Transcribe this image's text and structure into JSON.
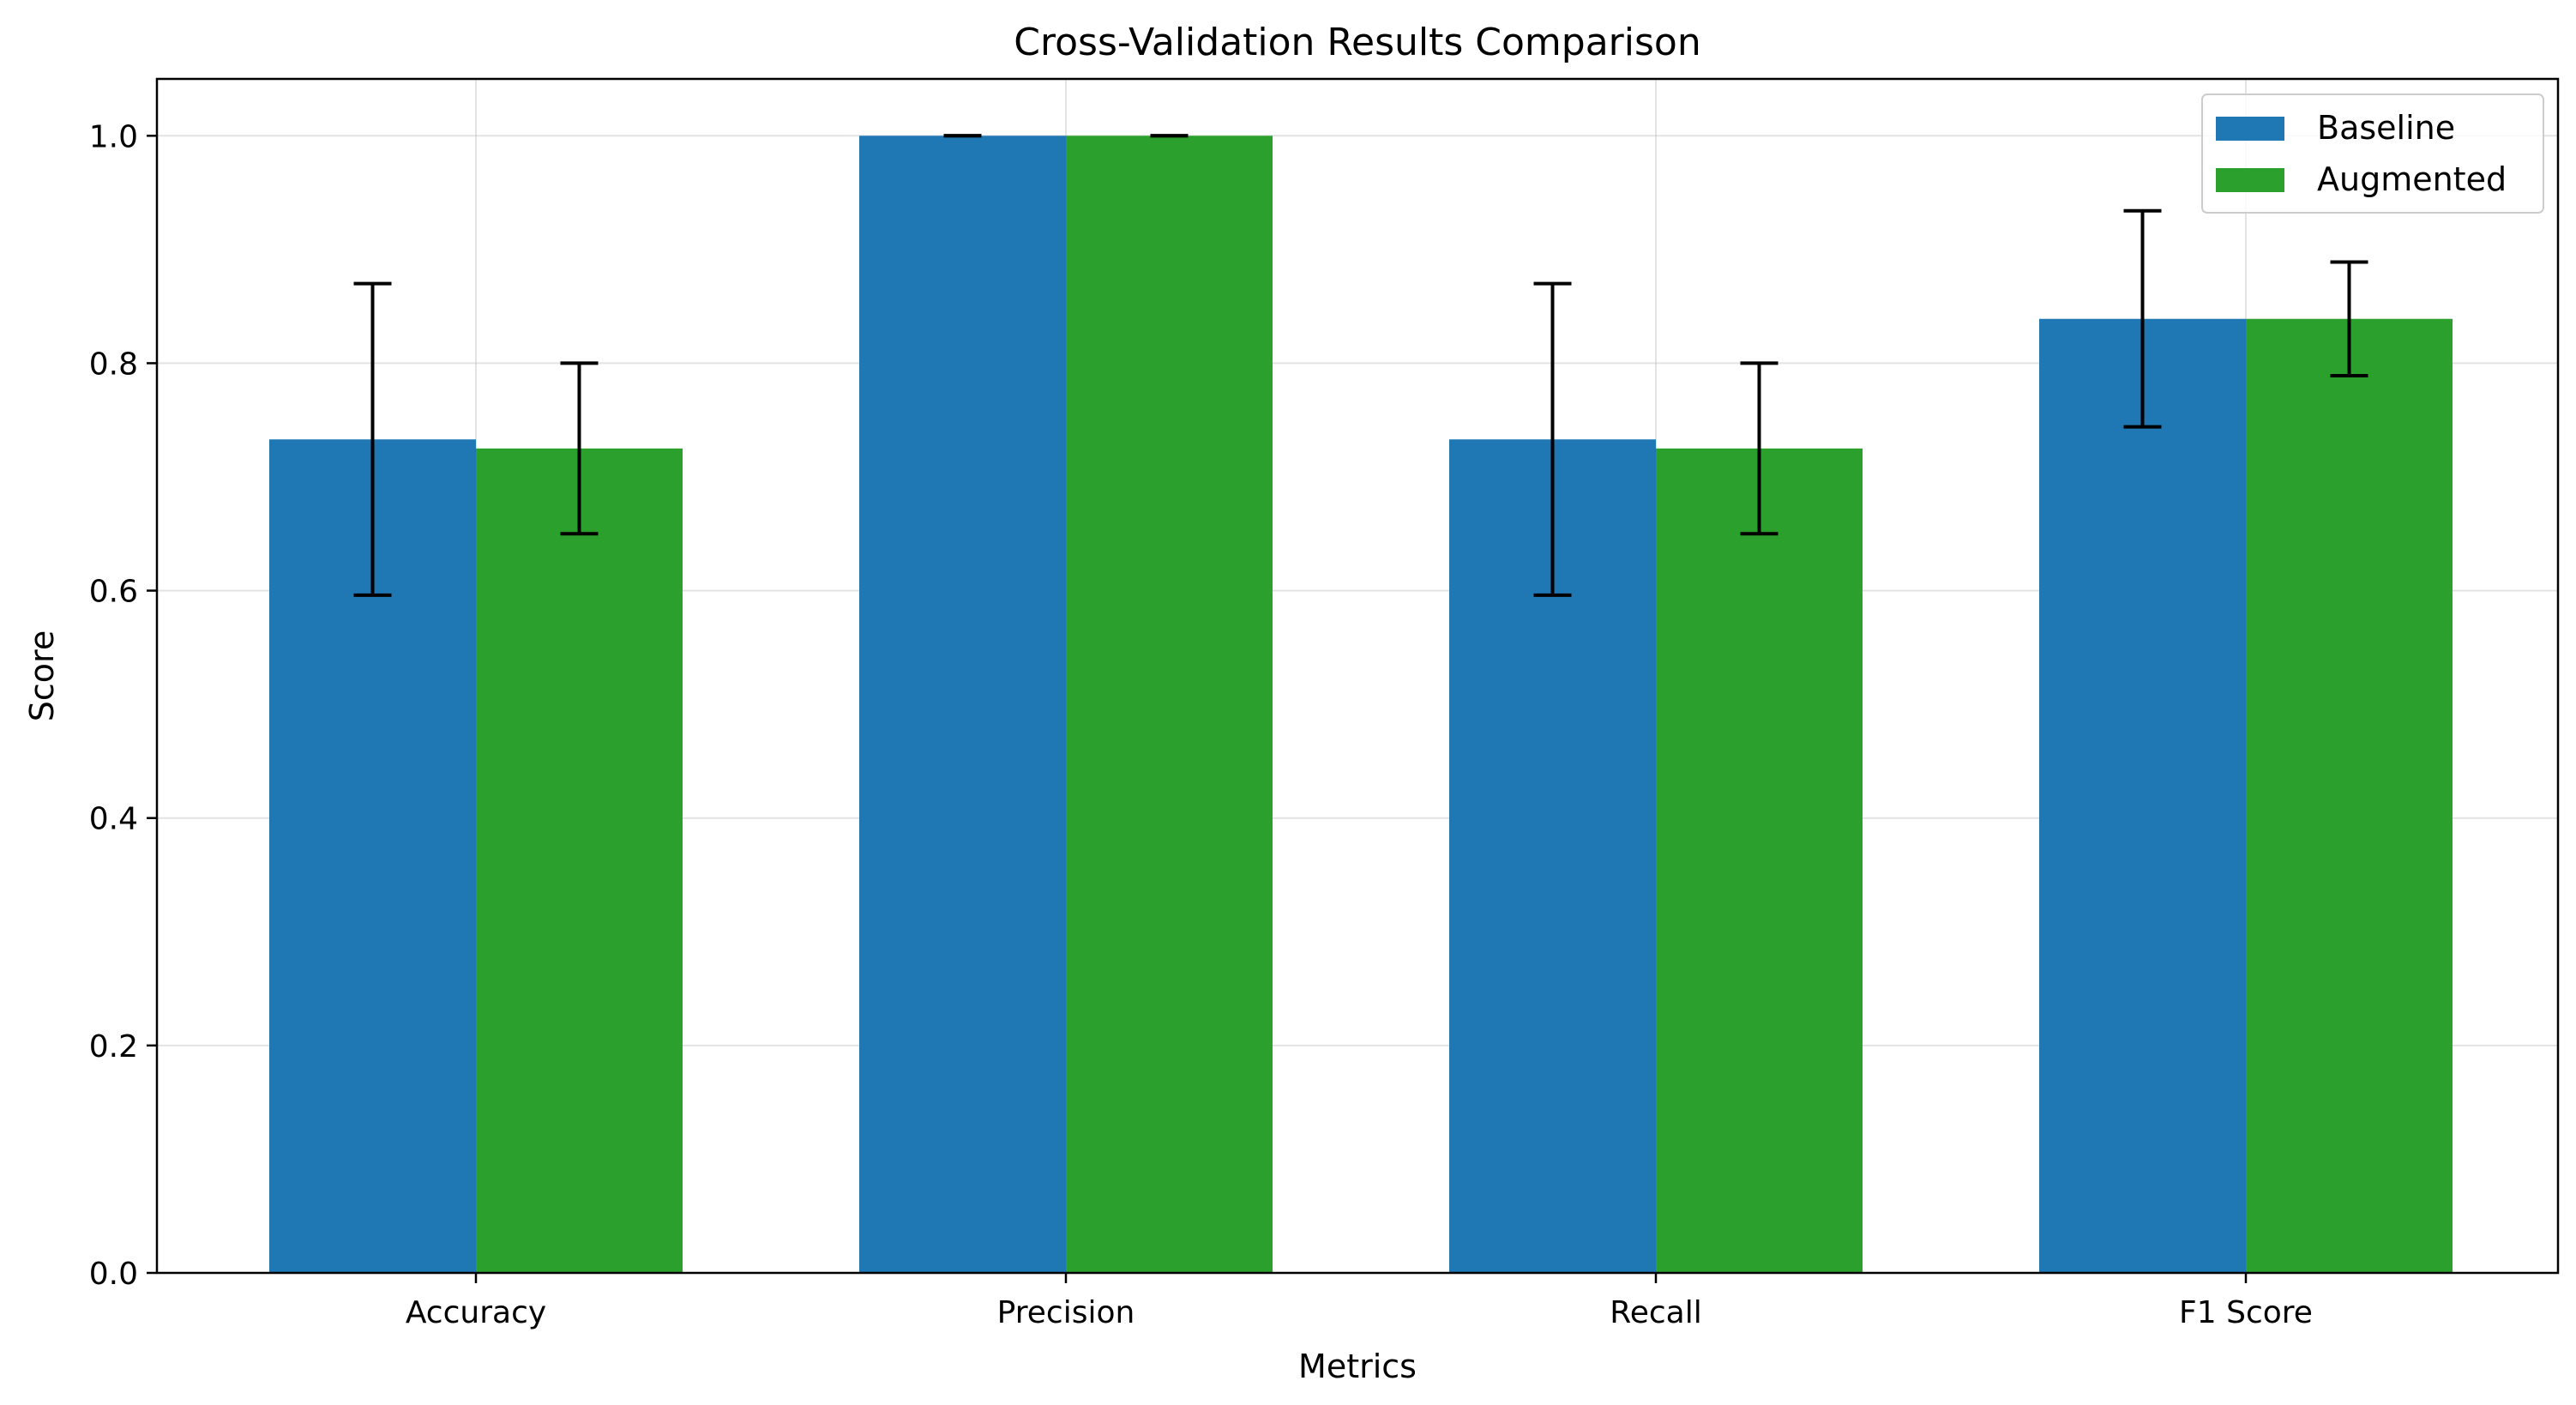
{
  "chart_data": {
    "type": "bar",
    "title": "Cross-Validation Results Comparison",
    "xlabel": "Metrics",
    "ylabel": "Score",
    "categories": [
      "Accuracy",
      "Precision",
      "Recall",
      "F1 Score"
    ],
    "series": [
      {
        "name": "Baseline",
        "color": "#1f77b4",
        "values": [
          0.733,
          1.0,
          0.733,
          0.839
        ],
        "errors": [
          0.137,
          0.0,
          0.137,
          0.095
        ]
      },
      {
        "name": "Augmented",
        "color": "#2ca02c",
        "values": [
          0.725,
          1.0,
          0.725,
          0.839
        ],
        "errors": [
          0.075,
          0.0,
          0.075,
          0.05
        ]
      }
    ],
    "ylim": [
      0,
      1.05
    ],
    "yticks": [
      "0.0",
      "0.2",
      "0.4",
      "0.6",
      "0.8",
      "1.0"
    ],
    "grid": true,
    "legend_position": "top-right"
  }
}
